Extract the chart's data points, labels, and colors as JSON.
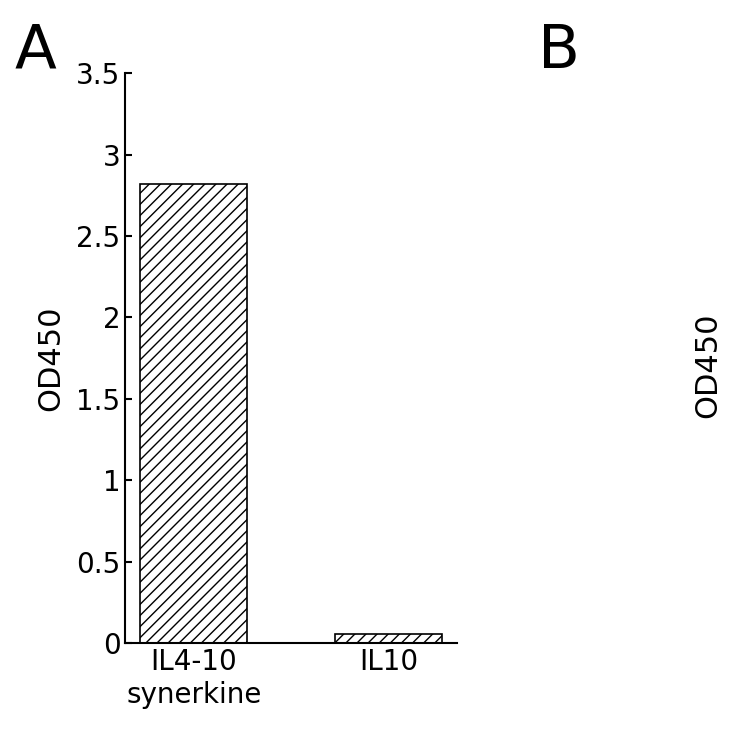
{
  "categories": [
    "IL4-10\nsynerkine",
    "IL10"
  ],
  "values": [
    2.82,
    0.06
  ],
  "hatch": "///",
  "ylabel": "OD450",
  "ylim": [
    0,
    3.5
  ],
  "yticks": [
    0,
    0.5,
    1,
    1.5,
    2,
    2.5,
    3,
    3.5
  ],
  "ytick_labels": [
    "0",
    "0.5",
    "1",
    "1.5",
    "2",
    "2.5",
    "3",
    "3.5"
  ],
  "panel_label_A": "A",
  "panel_label_B": "B",
  "panel_label_B_ylabel": "OD450",
  "bar_width": 0.55,
  "background_color": "#ffffff",
  "tick_fontsize": 20,
  "label_fontsize": 22,
  "panel_fontsize": 44,
  "figwidth": 7.37,
  "figheight": 7.31
}
